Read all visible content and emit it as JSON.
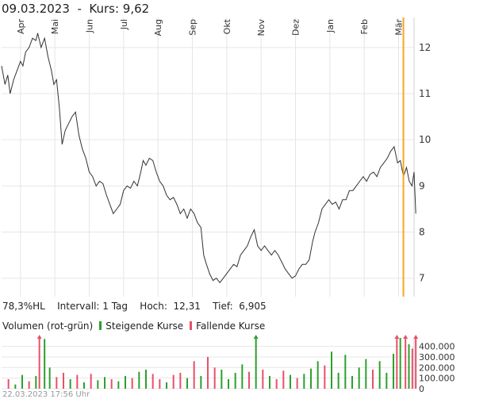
{
  "header": {
    "date": "09.03.2023",
    "separator": "-",
    "price_label": "Kurs: 9,62"
  },
  "stats": {
    "hl": "78,3%HL",
    "interval": "Intervall: 1 Tag",
    "high": "Hoch:  12,31",
    "low": "Tief:  6,905"
  },
  "volume_legend": {
    "title": "Volumen (rot-grün)",
    "rising": "Steigende Kurse",
    "falling": "Fallende Kurse"
  },
  "footer": {
    "timestamp": "22.03.2023 17:56 Uhr"
  },
  "colors": {
    "price_line": "#333333",
    "marker": "#f5a623",
    "rising": "#2ca02c",
    "falling": "#e8506a",
    "grid": "#e6e6e6"
  },
  "chart_data": [
    {
      "type": "line",
      "name": "price",
      "x_ticks": [
        "Apr",
        "Mai",
        "Jun",
        "Jul",
        "Aug",
        "Sep",
        "Okt",
        "Nov",
        "Dez",
        "Jan",
        "Feb",
        "Mär"
      ],
      "y_ticks": [
        7,
        8,
        9,
        10,
        11,
        12
      ],
      "ylim": [
        6.6,
        12.65
      ],
      "xlim": [
        0,
        12
      ],
      "marker_x": 11.69,
      "points": [
        [
          0.0,
          11.6
        ],
        [
          0.1,
          11.2
        ],
        [
          0.18,
          11.4
        ],
        [
          0.25,
          11.0
        ],
        [
          0.35,
          11.3
        ],
        [
          0.45,
          11.5
        ],
        [
          0.55,
          11.7
        ],
        [
          0.62,
          11.6
        ],
        [
          0.7,
          11.9
        ],
        [
          0.8,
          12.0
        ],
        [
          0.9,
          12.2
        ],
        [
          1.0,
          12.15
        ],
        [
          1.05,
          12.31
        ],
        [
          1.15,
          12.0
        ],
        [
          1.25,
          12.2
        ],
        [
          1.35,
          11.8
        ],
        [
          1.45,
          11.5
        ],
        [
          1.52,
          11.2
        ],
        [
          1.6,
          11.3
        ],
        [
          1.68,
          10.7
        ],
        [
          1.76,
          9.9
        ],
        [
          1.85,
          10.2
        ],
        [
          1.95,
          10.35
        ],
        [
          2.05,
          10.5
        ],
        [
          2.15,
          10.6
        ],
        [
          2.25,
          10.1
        ],
        [
          2.35,
          9.8
        ],
        [
          2.45,
          9.6
        ],
        [
          2.55,
          9.3
        ],
        [
          2.65,
          9.2
        ],
        [
          2.75,
          9.0
        ],
        [
          2.85,
          9.1
        ],
        [
          2.95,
          9.05
        ],
        [
          3.05,
          8.8
        ],
        [
          3.15,
          8.6
        ],
        [
          3.25,
          8.4
        ],
        [
          3.35,
          8.5
        ],
        [
          3.45,
          8.6
        ],
        [
          3.55,
          8.9
        ],
        [
          3.65,
          9.0
        ],
        [
          3.75,
          8.95
        ],
        [
          3.85,
          9.1
        ],
        [
          3.95,
          9.0
        ],
        [
          4.05,
          9.3
        ],
        [
          4.12,
          9.55
        ],
        [
          4.2,
          9.45
        ],
        [
          4.3,
          9.6
        ],
        [
          4.4,
          9.55
        ],
        [
          4.5,
          9.3
        ],
        [
          4.6,
          9.1
        ],
        [
          4.7,
          9.0
        ],
        [
          4.8,
          8.8
        ],
        [
          4.9,
          8.7
        ],
        [
          5.0,
          8.75
        ],
        [
          5.1,
          8.6
        ],
        [
          5.2,
          8.4
        ],
        [
          5.3,
          8.5
        ],
        [
          5.4,
          8.3
        ],
        [
          5.5,
          8.5
        ],
        [
          5.6,
          8.4
        ],
        [
          5.7,
          8.2
        ],
        [
          5.8,
          8.1
        ],
        [
          5.88,
          7.5
        ],
        [
          5.96,
          7.3
        ],
        [
          6.05,
          7.1
        ],
        [
          6.15,
          6.95
        ],
        [
          6.25,
          7.0
        ],
        [
          6.35,
          6.905
        ],
        [
          6.45,
          7.0
        ],
        [
          6.55,
          7.1
        ],
        [
          6.65,
          7.2
        ],
        [
          6.75,
          7.3
        ],
        [
          6.85,
          7.25
        ],
        [
          6.95,
          7.5
        ],
        [
          7.05,
          7.6
        ],
        [
          7.15,
          7.7
        ],
        [
          7.25,
          7.9
        ],
        [
          7.35,
          8.05
        ],
        [
          7.45,
          7.7
        ],
        [
          7.55,
          7.6
        ],
        [
          7.65,
          7.7
        ],
        [
          7.75,
          7.6
        ],
        [
          7.85,
          7.5
        ],
        [
          7.95,
          7.6
        ],
        [
          8.05,
          7.5
        ],
        [
          8.15,
          7.35
        ],
        [
          8.25,
          7.2
        ],
        [
          8.35,
          7.1
        ],
        [
          8.45,
          7.0
        ],
        [
          8.55,
          7.05
        ],
        [
          8.65,
          7.2
        ],
        [
          8.75,
          7.3
        ],
        [
          8.85,
          7.3
        ],
        [
          8.95,
          7.4
        ],
        [
          9.05,
          7.8
        ],
        [
          9.12,
          8.0
        ],
        [
          9.22,
          8.2
        ],
        [
          9.32,
          8.5
        ],
        [
          9.42,
          8.6
        ],
        [
          9.52,
          8.7
        ],
        [
          9.62,
          8.6
        ],
        [
          9.72,
          8.65
        ],
        [
          9.82,
          8.5
        ],
        [
          9.92,
          8.7
        ],
        [
          10.02,
          8.7
        ],
        [
          10.12,
          8.9
        ],
        [
          10.22,
          8.9
        ],
        [
          10.32,
          9.0
        ],
        [
          10.42,
          9.1
        ],
        [
          10.52,
          9.2
        ],
        [
          10.62,
          9.1
        ],
        [
          10.72,
          9.25
        ],
        [
          10.82,
          9.3
        ],
        [
          10.92,
          9.2
        ],
        [
          11.02,
          9.4
        ],
        [
          11.12,
          9.5
        ],
        [
          11.22,
          9.6
        ],
        [
          11.32,
          9.75
        ],
        [
          11.42,
          9.85
        ],
        [
          11.52,
          9.5
        ],
        [
          11.6,
          9.55
        ],
        [
          11.69,
          9.2
        ],
        [
          11.78,
          9.4
        ],
        [
          11.86,
          9.1
        ],
        [
          11.94,
          9.0
        ],
        [
          12.0,
          9.3
        ],
        [
          12.05,
          8.4
        ]
      ]
    },
    {
      "type": "bar",
      "name": "volume",
      "y_ticks": [
        0,
        100000,
        200000,
        300000,
        400000
      ],
      "y_tick_labels": [
        "0",
        "100.000",
        "200.000",
        "300.000",
        "400.000"
      ],
      "ylim": [
        0,
        480000
      ],
      "xlim": [
        0,
        12
      ],
      "bars": [
        [
          0.2,
          90000,
          "r"
        ],
        [
          0.4,
          40000,
          "g"
        ],
        [
          0.6,
          130000,
          "g"
        ],
        [
          0.8,
          70000,
          "r"
        ],
        [
          1.0,
          120000,
          "g"
        ],
        [
          1.1,
          520000,
          "r"
        ],
        [
          1.25,
          470000,
          "g"
        ],
        [
          1.4,
          200000,
          "g"
        ],
        [
          1.6,
          110000,
          "r"
        ],
        [
          1.8,
          150000,
          "r"
        ],
        [
          2.0,
          90000,
          "g"
        ],
        [
          2.2,
          130000,
          "r"
        ],
        [
          2.4,
          60000,
          "g"
        ],
        [
          2.6,
          140000,
          "r"
        ],
        [
          2.8,
          80000,
          "g"
        ],
        [
          3.0,
          110000,
          "g"
        ],
        [
          3.2,
          90000,
          "r"
        ],
        [
          3.4,
          70000,
          "g"
        ],
        [
          3.6,
          120000,
          "g"
        ],
        [
          3.8,
          100000,
          "r"
        ],
        [
          4.0,
          160000,
          "g"
        ],
        [
          4.2,
          180000,
          "g"
        ],
        [
          4.4,
          140000,
          "r"
        ],
        [
          4.6,
          90000,
          "r"
        ],
        [
          4.8,
          60000,
          "g"
        ],
        [
          5.0,
          130000,
          "r"
        ],
        [
          5.2,
          150000,
          "r"
        ],
        [
          5.4,
          100000,
          "g"
        ],
        [
          5.6,
          260000,
          "r"
        ],
        [
          5.8,
          120000,
          "g"
        ],
        [
          6.0,
          300000,
          "r"
        ],
        [
          6.2,
          200000,
          "r"
        ],
        [
          6.4,
          180000,
          "g"
        ],
        [
          6.6,
          90000,
          "g"
        ],
        [
          6.8,
          150000,
          "g"
        ],
        [
          7.0,
          230000,
          "g"
        ],
        [
          7.2,
          160000,
          "r"
        ],
        [
          7.4,
          520000,
          "g"
        ],
        [
          7.6,
          180000,
          "r"
        ],
        [
          7.8,
          120000,
          "g"
        ],
        [
          8.0,
          90000,
          "r"
        ],
        [
          8.2,
          170000,
          "r"
        ],
        [
          8.4,
          130000,
          "g"
        ],
        [
          8.6,
          100000,
          "r"
        ],
        [
          8.8,
          140000,
          "g"
        ],
        [
          9.0,
          190000,
          "g"
        ],
        [
          9.2,
          260000,
          "g"
        ],
        [
          9.4,
          220000,
          "r"
        ],
        [
          9.6,
          350000,
          "g"
        ],
        [
          9.8,
          150000,
          "g"
        ],
        [
          10.0,
          320000,
          "g"
        ],
        [
          10.2,
          120000,
          "g"
        ],
        [
          10.4,
          200000,
          "g"
        ],
        [
          10.6,
          280000,
          "g"
        ],
        [
          10.8,
          180000,
          "r"
        ],
        [
          11.0,
          260000,
          "g"
        ],
        [
          11.2,
          150000,
          "g"
        ],
        [
          11.4,
          330000,
          "g"
        ],
        [
          11.5,
          520000,
          "r"
        ],
        [
          11.6,
          480000,
          "g"
        ],
        [
          11.75,
          520000,
          "r"
        ],
        [
          11.85,
          420000,
          "g"
        ],
        [
          11.95,
          380000,
          "r"
        ],
        [
          12.05,
          520000,
          "r"
        ]
      ]
    }
  ]
}
